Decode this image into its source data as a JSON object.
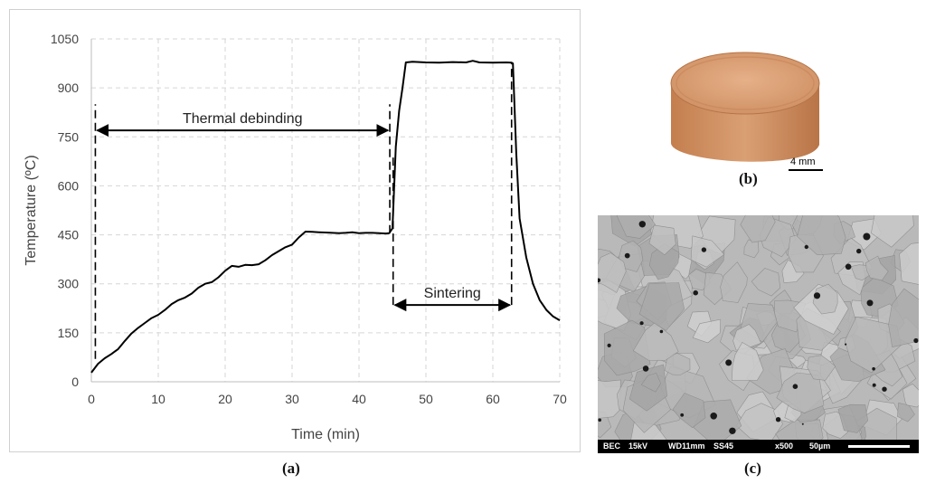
{
  "chart_data": {
    "type": "line",
    "title": "",
    "xlabel": "Time (min)",
    "ylabel": "Temperature (ºC)",
    "xlim": [
      0,
      70
    ],
    "ylim": [
      0,
      1050
    ],
    "xticks": [
      0,
      10,
      20,
      30,
      40,
      50,
      60,
      70
    ],
    "yticks": [
      0,
      150,
      300,
      450,
      600,
      750,
      900,
      1050
    ],
    "grid": "dashed",
    "legend": "none",
    "series": [
      {
        "color": "#000000",
        "x": [
          0,
          1,
          2,
          3,
          4,
          5,
          6,
          7,
          8,
          9,
          10,
          11,
          12,
          13,
          14,
          15,
          16,
          17,
          18,
          19,
          20,
          21,
          22,
          23,
          24,
          25,
          26,
          27,
          28,
          29,
          30,
          31,
          32,
          33,
          34,
          35,
          36,
          37,
          38,
          39,
          40,
          41,
          42,
          43,
          44,
          44.5,
          45,
          45.5,
          46,
          46.5,
          47,
          48,
          50,
          52,
          54,
          56,
          57,
          58,
          60,
          62,
          62.8,
          63,
          63.5,
          64,
          65,
          66,
          67,
          68,
          69,
          70
        ],
        "y": [
          28,
          55,
          72,
          85,
          100,
          125,
          148,
          165,
          180,
          195,
          205,
          220,
          238,
          250,
          258,
          270,
          288,
          300,
          305,
          320,
          340,
          355,
          352,
          358,
          357,
          360,
          372,
          388,
          400,
          412,
          420,
          442,
          460,
          459,
          458,
          457,
          456,
          455,
          456,
          458,
          455,
          456,
          456,
          455,
          454,
          455,
          470,
          720,
          830,
          900,
          978,
          980,
          978,
          977,
          979,
          978,
          983,
          978,
          977,
          978,
          977,
          975,
          700,
          500,
          380,
          300,
          250,
          220,
          200,
          188
        ]
      }
    ],
    "annotations": [
      {
        "text": "Thermal debinding",
        "x_start": 0.6,
        "x_end": 44.6,
        "y": 770
      },
      {
        "text": "Sintering",
        "x_start": 45.1,
        "x_end": 62.8,
        "y": 235
      }
    ],
    "vlines": [
      {
        "x": 0.6,
        "y_start": 70,
        "y_end": 850
      },
      {
        "x": 44.6,
        "y_start": 455,
        "y_end": 850
      },
      {
        "x": 45.1,
        "y_start": 235,
        "y_end": 700
      },
      {
        "x": 62.8,
        "y_start": 235,
        "y_end": 975
      }
    ]
  },
  "panels": {
    "a": "(a)",
    "b": "(b)",
    "c": "(c)"
  },
  "photo": {
    "scale_text": "4 mm",
    "sample_color": "#d29467"
  },
  "sem": {
    "info": [
      "BEC",
      "15kV",
      "WD11mm",
      "SS45",
      "x500",
      "50µm"
    ]
  }
}
